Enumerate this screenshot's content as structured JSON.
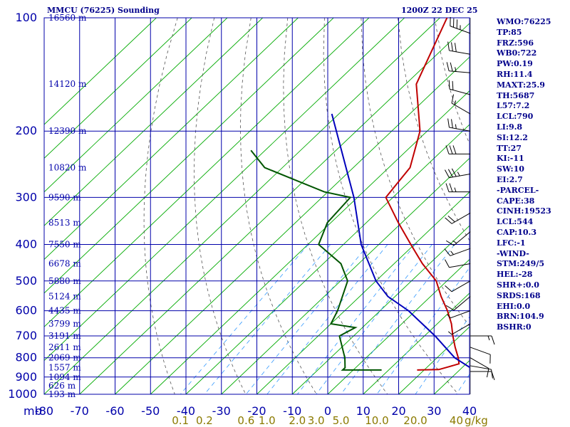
{
  "header": {
    "station": "MMCU (76225) Sounding",
    "time": "1200Z 22 DEC 25"
  },
  "indices": [
    "WMO:76225",
    "TP:85",
    "FRZ:596",
    "WB0:722",
    "PW:0.19",
    "RH:11.4",
    "MAXT:25.9",
    "TH:5687",
    "L57:7.2",
    "LCL:790",
    "LI:9.8",
    "SI:12.2",
    "TT:27",
    "KI:-11",
    "SW:10",
    "EI:2.7",
    "-PARCEL-",
    "CAPE:38",
    "CINH:19523",
    "LCL:544",
    "CAP:10.3",
    "LFC:-1",
    "-WIND-",
    "STM:249/5",
    "HEL:-28",
    "SHR+:0.0",
    "SRDS:168",
    "EHI:0.0",
    "BRN:104.9",
    "BSHR:0"
  ],
  "colors": {
    "grid": "#0000aa",
    "dry_adiabat": "#00aa00",
    "moist_adiabat": "#555555",
    "mixing_ratio": "#3399ff",
    "temperature": "#c00000",
    "dewpoint": "#005500",
    "parcel": "#0000bb",
    "axis_text": "#0000aa",
    "mixing_text": "#8b7a00"
  },
  "chart_data": {
    "type": "line",
    "title": "MMCU (76225) Sounding",
    "x_unit_label": "mb",
    "xlim": [
      -80,
      40
    ],
    "x_ticks": [
      "-80",
      "-70",
      "-60",
      "-50",
      "-40",
      "-30",
      "-20",
      "-10",
      "0",
      "10",
      "20",
      "30",
      "40"
    ],
    "y_scale": "log",
    "ylim": [
      100,
      1000
    ],
    "pressure_ticks": [
      "100",
      "200",
      "300",
      "400",
      "500",
      "600",
      "700",
      "800",
      "900",
      "1000"
    ],
    "height_labels": [
      {
        "p": 100,
        "label": "16560 m"
      },
      {
        "p": 150,
        "label": "14120 m"
      },
      {
        "p": 200,
        "label": "12390 m"
      },
      {
        "p": 250,
        "label": "10820 m"
      },
      {
        "p": 300,
        "label": "9590 m"
      },
      {
        "p": 350,
        "label": "8513 m"
      },
      {
        "p": 400,
        "label": "7550 m"
      },
      {
        "p": 450,
        "label": "6678 m"
      },
      {
        "p": 500,
        "label": "5880 m"
      },
      {
        "p": 550,
        "label": "5124 m"
      },
      {
        "p": 600,
        "label": "4435 m"
      },
      {
        "p": 650,
        "label": "3799 m"
      },
      {
        "p": 700,
        "label": "3191 m"
      },
      {
        "p": 750,
        "label": "2611 m"
      },
      {
        "p": 800,
        "label": "2069 m"
      },
      {
        "p": 850,
        "label": "1557 m"
      },
      {
        "p": 900,
        "label": "1094 m"
      },
      {
        "p": 950,
        "label": "626 m"
      },
      {
        "p": 1000,
        "label": "193 m"
      }
    ],
    "mixing_ratio_labels": [
      {
        "w": 0.1,
        "label": "0.1"
      },
      {
        "w": 0.2,
        "label": "0.2"
      },
      {
        "w": 0.6,
        "label": "0.6"
      },
      {
        "w": 1.0,
        "label": "1.0"
      },
      {
        "w": 2.0,
        "label": "2.0"
      },
      {
        "w": 3.0,
        "label": "3.0"
      },
      {
        "w": 5.0,
        "label": "5.0"
      },
      {
        "w": 10.0,
        "label": "10.0"
      },
      {
        "w": 20.0,
        "label": "20.0"
      },
      {
        "w": 40.0,
        "label": "40"
      }
    ],
    "mixing_unit": "g/kg",
    "series": [
      {
        "key": "temperature",
        "points": [
          {
            "p": 100,
            "t": -78
          },
          {
            "p": 150,
            "t": -67
          },
          {
            "p": 200,
            "t": -52
          },
          {
            "p": 250,
            "t": -44
          },
          {
            "p": 300,
            "t": -42
          },
          {
            "p": 350,
            "t": -31
          },
          {
            "p": 400,
            "t": -21
          },
          {
            "p": 450,
            "t": -12
          },
          {
            "p": 500,
            "t": -3
          },
          {
            "p": 550,
            "t": 3
          },
          {
            "p": 600,
            "t": 9
          },
          {
            "p": 650,
            "t": 14
          },
          {
            "p": 700,
            "t": 18
          },
          {
            "p": 750,
            "t": 22
          },
          {
            "p": 800,
            "t": 26
          },
          {
            "p": 830,
            "t": 28
          },
          {
            "p": 845,
            "t": 26
          },
          {
            "p": 860,
            "t": 24
          },
          {
            "p": 862,
            "t": 18
          }
        ]
      },
      {
        "key": "dewpoint",
        "points": [
          {
            "p": 225,
            "t": -94
          },
          {
            "p": 250,
            "t": -85
          },
          {
            "p": 290,
            "t": -61
          },
          {
            "p": 300,
            "t": -52
          },
          {
            "p": 350,
            "t": -51
          },
          {
            "p": 400,
            "t": -47
          },
          {
            "p": 450,
            "t": -35
          },
          {
            "p": 500,
            "t": -28
          },
          {
            "p": 600,
            "t": -22
          },
          {
            "p": 650,
            "t": -20
          },
          {
            "p": 665,
            "t": -12
          },
          {
            "p": 700,
            "t": -14
          },
          {
            "p": 800,
            "t": -6
          },
          {
            "p": 850,
            "t": -3
          },
          {
            "p": 862,
            "t": -3
          },
          {
            "p": 862,
            "t": 8
          }
        ]
      },
      {
        "key": "parcel",
        "points": [
          {
            "p": 180,
            "t": -82
          },
          {
            "p": 300,
            "t": -51
          },
          {
            "p": 400,
            "t": -35
          },
          {
            "p": 500,
            "t": -20
          },
          {
            "p": 550,
            "t": -12
          },
          {
            "p": 600,
            "t": -2
          },
          {
            "p": 700,
            "t": 13
          },
          {
            "p": 800,
            "t": 25
          },
          {
            "p": 862,
            "t": 34
          }
        ]
      }
    ],
    "wind_barbs": [
      {
        "p": 110,
        "dir": 290,
        "spd": 35
      },
      {
        "p": 125,
        "dir": 280,
        "spd": 30
      },
      {
        "p": 140,
        "dir": 275,
        "spd": 25
      },
      {
        "p": 160,
        "dir": 285,
        "spd": 20
      },
      {
        "p": 180,
        "dir": 300,
        "spd": 15
      },
      {
        "p": 200,
        "dir": 280,
        "spd": 25
      },
      {
        "p": 230,
        "dir": 270,
        "spd": 30
      },
      {
        "p": 260,
        "dir": 260,
        "spd": 35
      },
      {
        "p": 290,
        "dir": 270,
        "spd": 25
      },
      {
        "p": 330,
        "dir": 240,
        "spd": 20
      },
      {
        "p": 370,
        "dir": 230,
        "spd": 15
      },
      {
        "p": 410,
        "dir": 250,
        "spd": 15
      },
      {
        "p": 450,
        "dir": 260,
        "spd": 10
      },
      {
        "p": 500,
        "dir": 240,
        "spd": 10
      },
      {
        "p": 550,
        "dir": 230,
        "spd": 10
      },
      {
        "p": 600,
        "dir": 250,
        "spd": 5
      },
      {
        "p": 650,
        "dir": 240,
        "spd": 5
      },
      {
        "p": 700,
        "dir": 90,
        "spd": 15
      },
      {
        "p": 750,
        "dir": 110,
        "spd": 10
      },
      {
        "p": 800,
        "dir": 120,
        "spd": 10
      },
      {
        "p": 840,
        "dir": 100,
        "spd": 10
      },
      {
        "p": 870,
        "dir": 90,
        "spd": 10
      }
    ]
  }
}
